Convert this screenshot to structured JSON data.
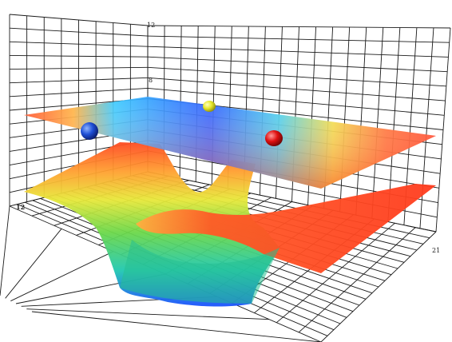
{
  "chart_data": {
    "type": "surface",
    "title": "",
    "xlabel": "",
    "ylabel": "",
    "zlabel": "",
    "grid": true,
    "legend": "none",
    "tick_labels": {
      "z_top": "12",
      "z_mid": "8",
      "left": "12",
      "right": "21"
    },
    "upper_surface": {
      "description_level": 8,
      "colormap": [
        "#1a3cff",
        "#00c8ff",
        "#3cdc64",
        "#f0f01e",
        "#ff8c1e",
        "#ff3c1e"
      ],
      "min_color": "#1a3cff",
      "max_color": "#ff3c1e"
    },
    "lower_surface": {
      "colormap": [
        "#1a3cff",
        "#00c8ff",
        "#3cdc64",
        "#f0f01e",
        "#ff8c1e",
        "#ff3c1e"
      ]
    },
    "markers": [
      {
        "name": "",
        "color": "#1f4fd6"
      },
      {
        "name": "",
        "color": "#e8e82a"
      },
      {
        "name": "",
        "color": "#e01010"
      }
    ]
  }
}
